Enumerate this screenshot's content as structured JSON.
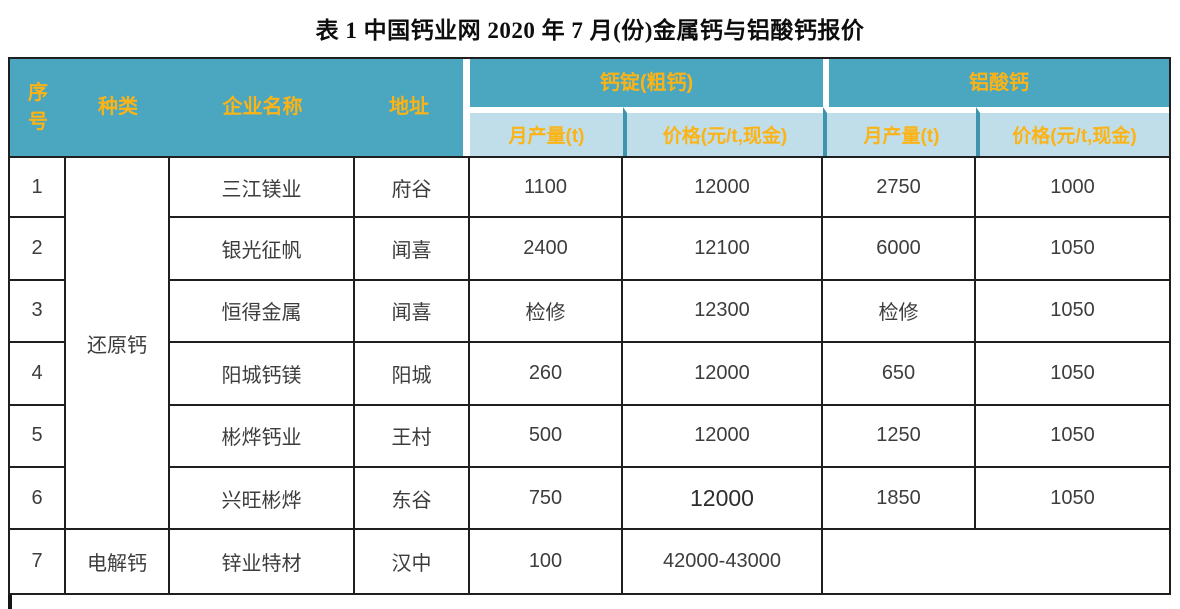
{
  "title": "表 1 中国钙业网 2020 年 7 月(份)金属钙与铝酸钙报价",
  "colors": {
    "header_teal": "#4AA7BF",
    "subheader_blue": "#BFDEE9",
    "separator_teal": "#3E93AD",
    "header_text_orange": "#FBB316",
    "body_text": "#3D3D3D",
    "grid_border": "#1F1F1F"
  },
  "table": {
    "headers": {
      "no": "序\n号",
      "type": "种类",
      "company": "企业名称",
      "address": "地址",
      "group_calcium_ingot": "钙锭(粗钙)",
      "group_calcium_aluminate": "铝酸钙",
      "sub_output_1": "月产量(t)",
      "sub_price_1": "价格(元/t,现金)",
      "sub_output_2": "月产量(t)",
      "sub_price_2": "价格(元/t,现金)"
    },
    "type_groups": [
      {
        "label": "还原钙",
        "row_span": 6
      },
      {
        "label": "电解钙",
        "row_span": 1
      }
    ],
    "rows": [
      {
        "no": "1",
        "company": "三江镁业",
        "address": "府谷",
        "output1": "1100",
        "price1": "12000",
        "output2": "2750",
        "price2": "1000"
      },
      {
        "no": "2",
        "company": "银光征帆",
        "address": "闻喜",
        "output1": "2400",
        "price1": "12100",
        "output2": "6000",
        "price2": "1050"
      },
      {
        "no": "3",
        "company": "恒得金属",
        "address": "闻喜",
        "output1": "检修",
        "price1": "12300",
        "output2": "检修",
        "price2": "1050"
      },
      {
        "no": "4",
        "company": "阳城钙镁",
        "address": "阳城",
        "output1": "260",
        "price1": "12000",
        "output2": "650",
        "price2": "1050"
      },
      {
        "no": "5",
        "company": "彬烨钙业",
        "address": "王村",
        "output1": "500",
        "price1": "12000",
        "output2": "1250",
        "price2": "1050"
      },
      {
        "no": "6",
        "company": "兴旺彬烨",
        "address": "东谷",
        "output1": "750",
        "price1": "12000",
        "output2": "1850",
        "price2": "1050"
      },
      {
        "no": "7",
        "company": "锌业特材",
        "address": "汉中",
        "output1": "100",
        "price1": "42000-43000",
        "output2": ""
      }
    ]
  }
}
